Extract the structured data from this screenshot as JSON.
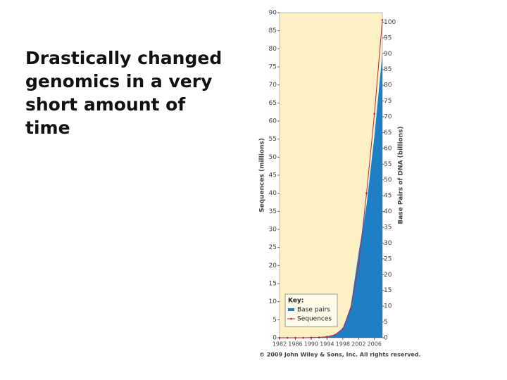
{
  "slide": {
    "lines": [
      "Drastically changed",
      "genomics in a very",
      "short amount of",
      "time"
    ]
  },
  "chart_data": {
    "type": "area-line",
    "y_label": "Sequences (millions)",
    "y2_label": "Base Pairs of DNA (billions)",
    "legend_title": "Key:",
    "note": "© 2009 John Wiley & Sons, Inc. All rights reserved.",
    "background": "#fdf0c4",
    "x": [
      1982,
      1984,
      1986,
      1988,
      1990,
      1992,
      1994,
      1996,
      1998,
      2000,
      2002,
      2004,
      2006,
      2008
    ],
    "series": [
      {
        "name": "Base pairs",
        "color": "#1f7fc6",
        "axis": "y2",
        "kind": "area",
        "values": [
          0,
          0,
          0,
          0,
          0,
          0.1,
          0.3,
          1,
          3,
          10,
          27,
          42,
          64,
          90
        ]
      },
      {
        "name": "Sequences",
        "color": "#c0283a",
        "kind": "line",
        "values": [
          0,
          0,
          0,
          0,
          0.05,
          0.1,
          0.3,
          0.8,
          2.5,
          8,
          20,
          40,
          62,
          88
        ]
      }
    ],
    "xlim": [
      1982,
      2008
    ],
    "xticks": [
      1982,
      1986,
      1990,
      1994,
      1998,
      2002,
      2006
    ],
    "ylim": [
      0,
      90
    ],
    "yticks": [
      0,
      5,
      10,
      15,
      20,
      25,
      30,
      35,
      40,
      45,
      50,
      55,
      60,
      65,
      70,
      75,
      80,
      85,
      90
    ],
    "y2lim": [
      0,
      103
    ],
    "y2ticks": [
      0,
      5,
      10,
      15,
      20,
      25,
      30,
      35,
      40,
      45,
      50,
      55,
      60,
      65,
      70,
      75,
      80,
      85,
      90,
      95,
      100
    ],
    "legend": "lower-left"
  }
}
